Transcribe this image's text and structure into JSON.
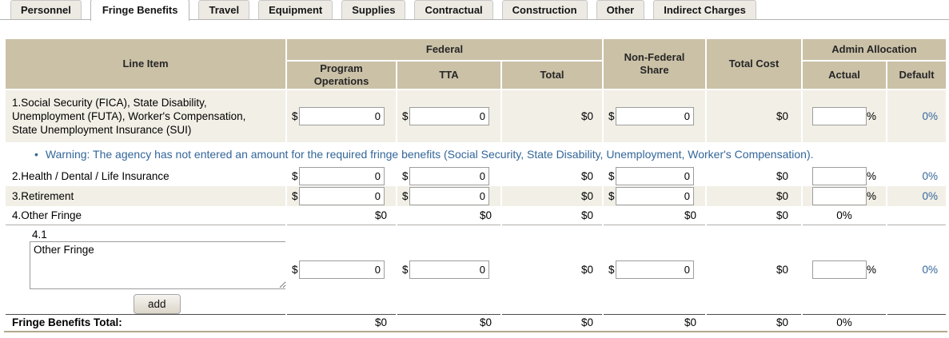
{
  "tabs": [
    {
      "label": "Personnel"
    },
    {
      "label": "Fringe Benefits"
    },
    {
      "label": "Travel"
    },
    {
      "label": "Equipment"
    },
    {
      "label": "Supplies"
    },
    {
      "label": "Contractual"
    },
    {
      "label": "Construction"
    },
    {
      "label": "Other"
    },
    {
      "label": "Indirect Charges"
    }
  ],
  "active_tab": "Fringe Benefits",
  "symbols": {
    "currency": "$",
    "percent": "%",
    "bullet": "•"
  },
  "colors": {
    "header_bg": "#cbc1a7",
    "row_stripe": "#f2efe6",
    "accent_blue": "#336699",
    "total_rule_bottom": "#b3a78c"
  },
  "table": {
    "headers": {
      "line_item": "Line Item",
      "federal": "Federal",
      "program_operations": "Program Operations",
      "tta": "TTA",
      "total": "Total",
      "non_federal_share": "Non-Federal Share",
      "total_cost": "Total Cost",
      "admin_allocation": "Admin Allocation",
      "actual": "Actual",
      "default": "Default"
    },
    "warning": "Warning: The agency has not entered an amount for the required fringe benefits (Social Security, State Disability, Unemployment, Worker's Compensation).",
    "rows": [
      {
        "label": "1.Social Security (FICA), State Disability, Unemployment (FUTA), Worker's Compensation, State Unemployment Insurance (SUI)",
        "program_operations": "0",
        "tta": "0",
        "total": "$0",
        "non_federal": "0",
        "total_cost": "$0",
        "actual": "",
        "default": "0%"
      },
      {
        "label": "2.Health / Dental / Life Insurance",
        "program_operations": "0",
        "tta": "0",
        "total": "$0",
        "non_federal": "0",
        "total_cost": "$0",
        "actual": "",
        "default": "0%"
      },
      {
        "label": "3.Retirement",
        "program_operations": "0",
        "tta": "0",
        "total": "$0",
        "non_federal": "0",
        "total_cost": "$0",
        "actual": "",
        "default": "0%"
      }
    ],
    "other_fringe_row": {
      "label": "4.Other Fringe",
      "program_operations": "$0",
      "tta": "$0",
      "total": "$0",
      "non_federal": "$0",
      "total_cost": "$0",
      "actual": "0%",
      "default": ""
    },
    "sub_row": {
      "number": "4.1",
      "description": "Other Fringe",
      "add_button_label": "add",
      "program_operations": "0",
      "tta": "0",
      "total": "$0",
      "non_federal": "0",
      "total_cost": "$0",
      "actual": "",
      "default": "0%"
    },
    "totals": {
      "label": "Fringe Benefits Total:",
      "program_operations": "$0",
      "tta": "$0",
      "total": "$0",
      "non_federal": "$0",
      "total_cost": "$0",
      "actual": "0%",
      "default": ""
    }
  }
}
